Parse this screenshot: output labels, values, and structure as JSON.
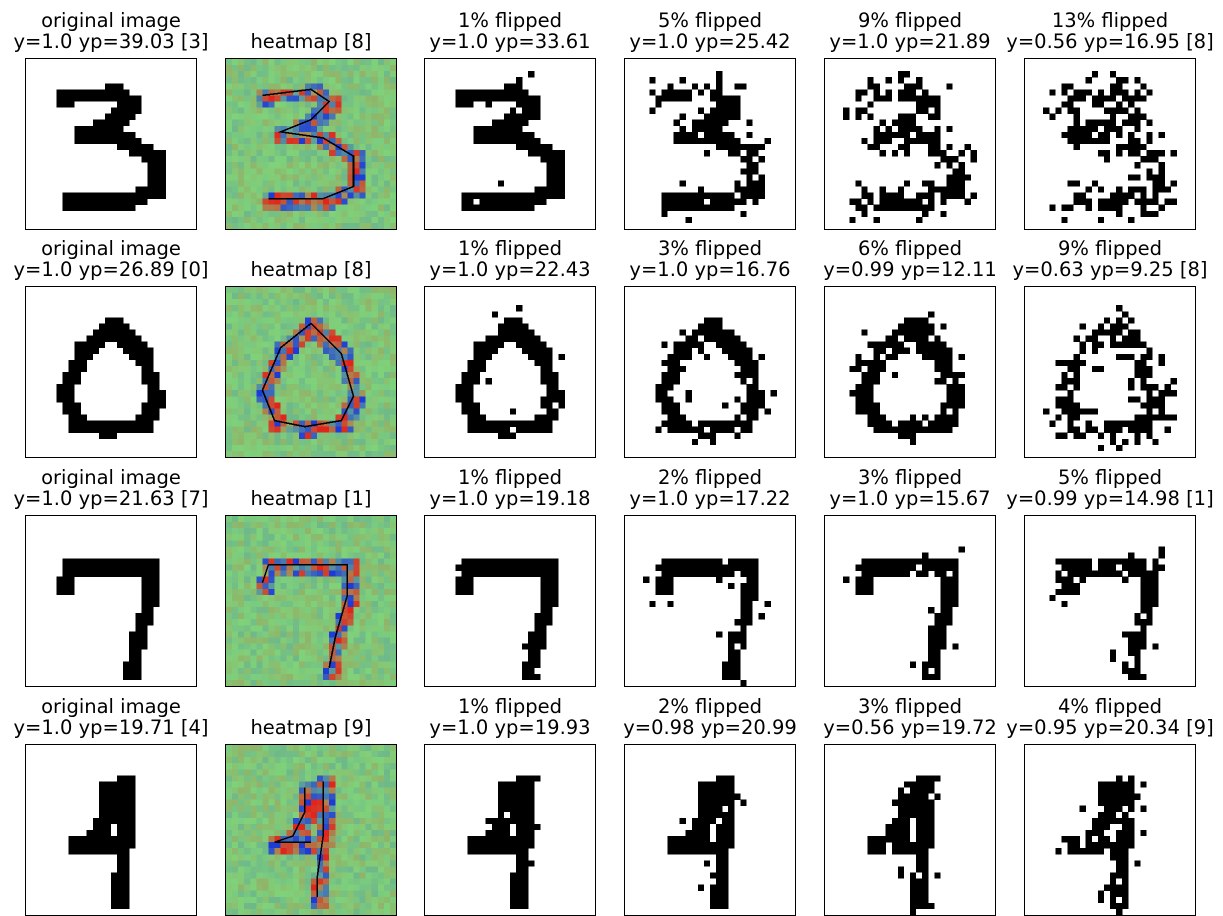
{
  "columns": [
    {
      "kind": "original"
    },
    {
      "kind": "heatmap"
    },
    {
      "kind": "flipped"
    },
    {
      "kind": "flipped"
    },
    {
      "kind": "flipped"
    },
    {
      "kind": "flipped"
    }
  ],
  "rows": [
    {
      "digit": "3",
      "cells": [
        {
          "line1": "original image",
          "line2": "y=1.0 yp=39.03 [3]",
          "noise": 0
        },
        {
          "line1": "",
          "line2": "heatmap [8]"
        },
        {
          "line1": "1% flipped",
          "line2": "y=1.0 yp=33.61",
          "noise": 0.01
        },
        {
          "line1": "5% flipped",
          "line2": "y=1.0 yp=25.42",
          "noise": 0.05
        },
        {
          "line1": "9% flipped",
          "line2": "y=1.0 yp=21.89",
          "noise": 0.09
        },
        {
          "line1": "13% flipped",
          "line2": "y=0.56 yp=16.95 [8]",
          "noise": 0.13
        }
      ]
    },
    {
      "digit": "0",
      "cells": [
        {
          "line1": "original image",
          "line2": "y=1.0 yp=26.89 [0]",
          "noise": 0
        },
        {
          "line1": "",
          "line2": "heatmap [8]"
        },
        {
          "line1": "1% flipped",
          "line2": "y=1.0 yp=22.43",
          "noise": 0.01
        },
        {
          "line1": "3% flipped",
          "line2": "y=1.0 yp=16.76",
          "noise": 0.03
        },
        {
          "line1": "6% flipped",
          "line2": "y=0.99 yp=12.11",
          "noise": 0.06
        },
        {
          "line1": "9% flipped",
          "line2": "y=0.63 yp=9.25 [8]",
          "noise": 0.09
        }
      ]
    },
    {
      "digit": "7",
      "cells": [
        {
          "line1": "original image",
          "line2": "y=1.0 yp=21.63 [7]",
          "noise": 0
        },
        {
          "line1": "",
          "line2": "heatmap [1]"
        },
        {
          "line1": "1% flipped",
          "line2": "y=1.0 yp=19.18",
          "noise": 0.01
        },
        {
          "line1": "2% flipped",
          "line2": "y=1.0 yp=17.22",
          "noise": 0.02
        },
        {
          "line1": "3% flipped",
          "line2": "y=1.0 yp=15.67",
          "noise": 0.03
        },
        {
          "line1": "5% flipped",
          "line2": "y=0.99 yp=14.98 [1]",
          "noise": 0.05
        }
      ]
    },
    {
      "digit": "4",
      "cells": [
        {
          "line1": "original image",
          "line2": "y=1.0 yp=19.71 [4]",
          "noise": 0
        },
        {
          "line1": "",
          "line2": "heatmap [9]"
        },
        {
          "line1": "1% flipped",
          "line2": "y=1.0 yp=19.93",
          "noise": 0.01
        },
        {
          "line1": "2% flipped",
          "line2": "y=0.98 yp=20.99",
          "noise": 0.02
        },
        {
          "line1": "3% flipped",
          "line2": "y=0.56 yp=19.72",
          "noise": 0.03
        },
        {
          "line1": "4% flipped",
          "line2": "y=0.95 yp=20.34 [9]",
          "noise": 0.04
        }
      ]
    }
  ],
  "colors": {
    "ink": "#000000",
    "paper": "#ffffff",
    "heat_low": "#1f3bd6",
    "heat_mid": "#7fd27a",
    "heat_high": "#e0261c"
  }
}
